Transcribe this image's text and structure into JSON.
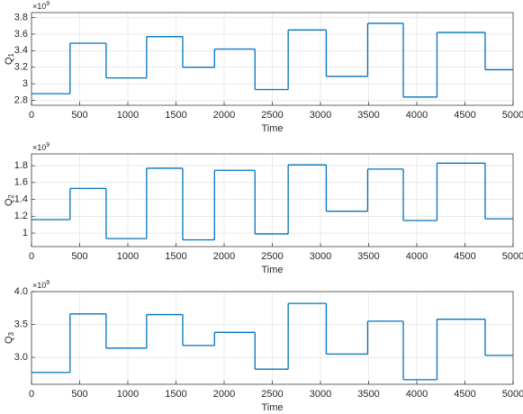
{
  "chart_data": [
    {
      "type": "step",
      "xlabel": "Time",
      "ylabel": "Q",
      "ylabel_sub": "1",
      "exponent_base": "×10",
      "exponent_power": "9",
      "x": [
        0,
        400,
        775,
        1195,
        1570,
        1900,
        2320,
        2665,
        3060,
        3490,
        3860,
        4210,
        4710
      ],
      "values": [
        2.88,
        3.49,
        3.07,
        3.57,
        3.2,
        3.42,
        2.93,
        3.65,
        3.09,
        3.73,
        2.84,
        3.62,
        3.17
      ],
      "color": "#0072bd",
      "xlim": [
        0,
        5000
      ],
      "xticks": [
        0,
        500,
        1000,
        1500,
        2000,
        2500,
        3000,
        3500,
        4000,
        4500,
        5000
      ],
      "ylim": [
        2.74,
        3.86
      ],
      "yticks": [
        2.8,
        3.0,
        3.2,
        3.4,
        3.6,
        3.8
      ],
      "grid": true
    },
    {
      "type": "step",
      "xlabel": "Time",
      "ylabel": "Q",
      "ylabel_sub": "2",
      "exponent_base": "×10",
      "exponent_power": "9",
      "x": [
        0,
        400,
        775,
        1195,
        1570,
        1900,
        2320,
        2665,
        3060,
        3490,
        3860,
        4210,
        4710
      ],
      "values": [
        1.16,
        1.53,
        0.935,
        1.77,
        0.92,
        1.745,
        0.99,
        1.81,
        1.26,
        1.76,
        1.15,
        1.83,
        1.17
      ],
      "color": "#0072bd",
      "xlim": [
        0,
        5000
      ],
      "xticks": [
        0,
        500,
        1000,
        1500,
        2000,
        2500,
        3000,
        3500,
        4000,
        4500,
        5000
      ],
      "ylim": [
        0.84,
        1.94
      ],
      "yticks": [
        1.0,
        1.2,
        1.4,
        1.6,
        1.8
      ],
      "grid": true
    },
    {
      "type": "step",
      "xlabel": "Time",
      "ylabel": "Q",
      "ylabel_sub": "3",
      "exponent_base": "×10",
      "exponent_power": "9",
      "x": [
        0,
        400,
        775,
        1195,
        1570,
        1900,
        2320,
        2665,
        3060,
        3490,
        3860,
        4210,
        4710
      ],
      "values": [
        2.77,
        3.66,
        3.14,
        3.65,
        3.18,
        3.38,
        2.82,
        3.82,
        3.05,
        3.55,
        2.66,
        3.58,
        3.03
      ],
      "color": "#0072bd",
      "xlim": [
        0,
        5000
      ],
      "xticks": [
        0,
        500,
        1000,
        1500,
        2000,
        2500,
        3000,
        3500,
        4000,
        4500,
        5000
      ],
      "ylim": [
        2.59,
        4.0
      ],
      "yticks": [
        {
          "value": 3.0,
          "label": "3.0"
        },
        3.5,
        {
          "value": 4.0,
          "label": "4.0"
        }
      ],
      "grid": true
    }
  ]
}
